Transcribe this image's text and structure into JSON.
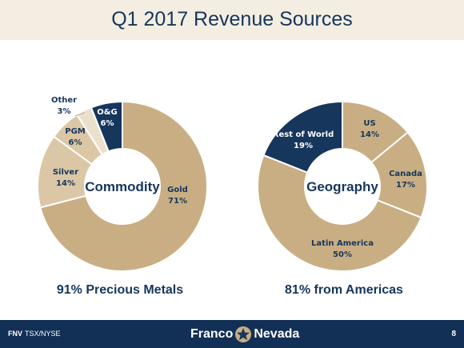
{
  "title": "Q1 2017 Revenue Sources",
  "colors": {
    "tan": "#c9ae83",
    "light_tan": "#dbc7a6",
    "pale": "#ebe0cb",
    "navy": "#16365c",
    "title_band": "#f4eee2",
    "footer": "#122f55"
  },
  "chart_data": [
    {
      "type": "pie",
      "center_label": "Commodity",
      "caption": "91% Precious Metals",
      "slices": [
        {
          "label": "Gold",
          "value": 71,
          "pct": "71%"
        },
        {
          "label": "Silver",
          "value": 14,
          "pct": "14%"
        },
        {
          "label": "PGM",
          "value": 6,
          "pct": "6%"
        },
        {
          "label": "Other",
          "value": 3,
          "pct": "3%"
        },
        {
          "label": "O&G",
          "value": 6,
          "pct": "6%"
        }
      ]
    },
    {
      "type": "pie",
      "center_label": "Geography",
      "caption": "81% from Americas",
      "slices": [
        {
          "label": "US",
          "value": 14,
          "pct": "14%"
        },
        {
          "label": "Canada",
          "value": 17,
          "pct": "17%"
        },
        {
          "label": "Latin America",
          "value": 50,
          "pct": "50%"
        },
        {
          "label": "Rest of World",
          "value": 19,
          "pct": "19%"
        }
      ]
    }
  ],
  "footer": {
    "ticker_bold": "FNV",
    "ticker": "TSX/NYSE",
    "logo_left": "Franco",
    "logo_right": "Nevada",
    "page_number": "8"
  }
}
